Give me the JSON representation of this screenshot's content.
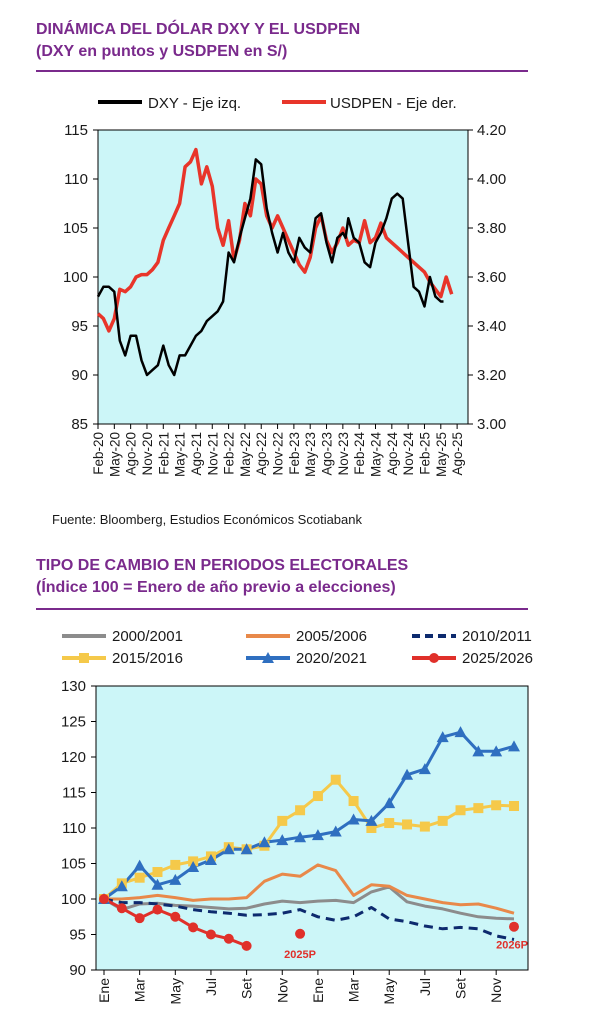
{
  "chart1": {
    "title_line1": "DINÁMICA DEL DÓLAR DXY Y EL USDPEN",
    "title_line2": "(DXY en puntos y USDPEN en S/)",
    "source": "Fuente: Bloomberg, Estudios Económicos Scotiabank",
    "colors": {
      "dxy": "#000000",
      "usdpen": "#e8352a",
      "plot_bg": "#ccf6f8"
    }
  },
  "chart2": {
    "title_line1": "TIPO DE CAMBIO EN PERIODOS ELECTORALES",
    "title_line2": "(Índice 100 = Enero de año previo a elecciones)",
    "label_2025p": "2025P",
    "label_2026p": "2026P",
    "colors": {
      "plot_bg": "#ccf6f8",
      "c2000": "#8c8c8c",
      "c2005": "#e8894a",
      "c2010": "#0d2a6e",
      "c2015": "#f5c94a",
      "c2020": "#2f6fc0",
      "c2025": "#e0302a"
    }
  },
  "chart_data": [
    {
      "type": "line",
      "title": "DINÁMICA DEL DÓLAR DXY Y EL USDPEN",
      "subtitle": "(DXY en puntos y USDPEN en S/)",
      "x_ticks": [
        "Feb-20",
        "May-20",
        "Ago-20",
        "Nov-20",
        "Feb-21",
        "May-21",
        "Ago-21",
        "Nov-21",
        "Feb-22",
        "May-22",
        "Ago-22",
        "Nov-22",
        "Feb-23",
        "May-23",
        "Ago-23",
        "Nov-23",
        "Feb-24",
        "May-24",
        "Ago-24",
        "Nov-24",
        "Feb-25",
        "May-25",
        "Ago-25"
      ],
      "x_range": [
        0,
        68
      ],
      "y_left_ticks": [
        "85",
        "90",
        "95",
        "100",
        "105",
        "110",
        "115"
      ],
      "y_left_range": [
        85,
        115
      ],
      "y_right_ticks": [
        "3.00",
        "3.20",
        "3.40",
        "3.60",
        "3.80",
        "4.00",
        "4.20"
      ],
      "y_right_range": [
        3.0,
        4.2
      ],
      "legend_position": "top",
      "series": [
        {
          "name": "DXY - Eje izq.",
          "axis": "left",
          "x": [
            0,
            1,
            2,
            3,
            4,
            5,
            6,
            7,
            8,
            9,
            10,
            11,
            12,
            13,
            14,
            15,
            16,
            17,
            18,
            19,
            20,
            21,
            22,
            23,
            24,
            25,
            26,
            27,
            28,
            29,
            30,
            31,
            32,
            33,
            34,
            35,
            36,
            37,
            38,
            39,
            40,
            41,
            42,
            43,
            44,
            45,
            45.5,
            46,
            47,
            48,
            49,
            50,
            51,
            52,
            53,
            54,
            55,
            56,
            57,
            58,
            59,
            60,
            61,
            62,
            63,
            63.5,
            64,
            65,
            66,
            67,
            68
          ],
          "values": [
            98.0,
            99.0,
            99.0,
            98.5,
            93.5,
            92.0,
            94.0,
            94.0,
            91.5,
            90.0,
            90.5,
            91.0,
            93.0,
            91.0,
            90.0,
            92.0,
            92.0,
            93.0,
            94.0,
            94.5,
            95.5,
            96.0,
            96.5,
            97.5,
            102.5,
            101.5,
            104.0,
            106.0,
            108.0,
            112.0,
            111.5,
            107.0,
            104.5,
            102.5,
            104.5,
            102.5,
            101.5,
            104.0,
            103.0,
            102.5,
            106.0,
            106.5,
            103.5,
            101.5,
            104.0,
            104.5,
            104.0,
            106.0,
            104.0,
            103.5,
            101.5,
            101.0,
            103.5,
            104.5,
            106.0,
            108.0,
            108.5,
            108.0,
            103.5,
            99.0,
            98.5,
            97.0,
            100.0,
            98.0,
            97.5,
            97.5,
            null,
            null,
            null,
            null,
            null
          ]
        },
        {
          "name": "USDPEN - Eje der.",
          "axis": "right",
          "x": [
            0,
            1,
            2,
            3,
            4,
            5,
            6,
            7,
            8,
            9,
            10,
            11,
            12,
            13,
            14,
            15,
            16,
            17,
            18,
            19,
            20,
            21,
            22,
            23,
            24,
            25,
            26,
            27,
            28,
            29,
            30,
            31,
            32,
            33,
            34,
            35,
            36,
            37,
            38,
            39,
            40,
            41,
            42,
            43,
            44,
            45,
            46,
            47,
            48,
            49,
            50,
            51,
            52,
            53,
            54,
            55,
            56,
            57,
            58,
            59,
            60,
            61,
            62,
            63,
            64,
            65,
            66,
            67,
            68
          ],
          "values": [
            3.45,
            3.43,
            3.38,
            3.43,
            3.55,
            3.54,
            3.56,
            3.6,
            3.61,
            3.61,
            3.63,
            3.66,
            3.75,
            3.8,
            3.85,
            3.9,
            4.05,
            4.07,
            4.12,
            3.98,
            4.05,
            3.97,
            3.8,
            3.73,
            3.83,
            3.67,
            3.75,
            3.9,
            3.85,
            4.0,
            3.98,
            3.85,
            3.8,
            3.85,
            3.8,
            3.75,
            3.7,
            3.65,
            3.62,
            3.68,
            3.8,
            3.85,
            3.75,
            3.7,
            3.74,
            3.8,
            3.73,
            3.75,
            3.74,
            3.83,
            3.74,
            3.76,
            3.82,
            3.76,
            3.74,
            3.72,
            3.7,
            3.68,
            3.66,
            3.64,
            3.62,
            3.58,
            3.55,
            3.52,
            3.6,
            3.53,
            null,
            null,
            null
          ]
        }
      ]
    },
    {
      "type": "line",
      "title": "TIPO DE CAMBIO EN PERIODOS ELECTORALES",
      "subtitle": "(Índice 100 = Enero de año previo a elecciones)",
      "x_ticks": [
        "Ene",
        "Mar",
        "May",
        "Jul",
        "Set",
        "Nov",
        "Ene",
        "Mar",
        "May",
        "Jul",
        "Set",
        "Nov"
      ],
      "x_range": [
        0,
        23
      ],
      "y_ticks": [
        "90",
        "95",
        "100",
        "105",
        "110",
        "115",
        "120",
        "125",
        "130"
      ],
      "y_range": [
        90,
        130
      ],
      "legend_position": "top",
      "annotations": [
        "2025P",
        "2026P"
      ],
      "series": [
        {
          "name": "2000/2001",
          "style": "solid",
          "x": [
            0,
            1,
            2,
            3,
            4,
            5,
            6,
            7,
            8,
            9,
            10,
            11,
            12,
            13,
            14,
            15,
            16,
            17,
            18,
            19,
            20,
            21,
            22,
            23
          ],
          "values": [
            100,
            98.5,
            99.3,
            99.4,
            99.1,
            99.0,
            98.8,
            98.6,
            98.7,
            99.3,
            99.7,
            99.5,
            99.7,
            99.8,
            99.5,
            101.0,
            101.7,
            99.6,
            99.0,
            98.6,
            98.0,
            97.5,
            97.3,
            97.2
          ]
        },
        {
          "name": "2005/2006",
          "style": "solid",
          "x": [
            0,
            1,
            2,
            3,
            4,
            5,
            6,
            7,
            8,
            9,
            10,
            11,
            12,
            13,
            14,
            15,
            16,
            17,
            18,
            19,
            20,
            21,
            22,
            23
          ],
          "values": [
            100,
            100.0,
            100.2,
            100.5,
            100.2,
            99.8,
            100.0,
            100.0,
            100.2,
            102.5,
            103.5,
            103.2,
            104.8,
            104.0,
            100.5,
            102.0,
            101.8,
            100.5,
            100.0,
            99.5,
            99.2,
            99.3,
            98.7,
            98.0
          ]
        },
        {
          "name": "2010/2011",
          "style": "dashed",
          "x": [
            0,
            1,
            2,
            3,
            4,
            5,
            6,
            7,
            8,
            9,
            10,
            11,
            12,
            13,
            14,
            15,
            16,
            17,
            18,
            19,
            20,
            21,
            22,
            23
          ],
          "values": [
            100,
            99.5,
            99.5,
            99.3,
            99.0,
            98.5,
            98.2,
            98.0,
            97.7,
            97.8,
            98.0,
            98.5,
            97.5,
            97.0,
            97.5,
            98.8,
            97.2,
            96.8,
            96.2,
            95.8,
            96.0,
            95.8,
            94.8,
            94.3
          ]
        },
        {
          "name": "2015/2016",
          "style": "solid-square",
          "x": [
            0,
            1,
            2,
            3,
            4,
            5,
            6,
            7,
            8,
            9,
            10,
            11,
            12,
            13,
            14,
            15,
            16,
            17,
            18,
            19,
            20,
            21,
            22,
            23
          ],
          "values": [
            100,
            102.2,
            103.0,
            103.8,
            104.8,
            105.3,
            106.0,
            107.3,
            107.0,
            107.5,
            111.0,
            112.5,
            114.5,
            116.8,
            113.8,
            110.0,
            110.7,
            110.5,
            110.2,
            111.0,
            112.5,
            112.8,
            113.2,
            113.1
          ]
        },
        {
          "name": "2020/2021",
          "style": "solid-triangle",
          "x": [
            0,
            1,
            2,
            3,
            4,
            5,
            6,
            7,
            8,
            9,
            10,
            11,
            12,
            13,
            14,
            15,
            16,
            17,
            18,
            19,
            20,
            21,
            22,
            23
          ],
          "values": [
            100,
            101.8,
            104.7,
            102.0,
            102.7,
            104.5,
            105.5,
            107.0,
            107.0,
            108.0,
            108.3,
            108.7,
            109.0,
            109.5,
            111.2,
            111.0,
            113.5,
            117.5,
            118.3,
            122.8,
            123.5,
            120.8,
            120.8,
            121.5
          ]
        },
        {
          "name": "2025/2026",
          "style": "solid-circle",
          "x": [
            0,
            1,
            2,
            3,
            4,
            5,
            6,
            7,
            8
          ],
          "values": [
            100,
            98.7,
            97.3,
            98.5,
            97.5,
            96.0,
            95.0,
            94.4,
            93.4
          ]
        },
        {
          "name": "2025/2026 proyección",
          "style": "point",
          "x": [
            11,
            23
          ],
          "values": [
            95.1,
            96.1
          ]
        }
      ]
    }
  ]
}
